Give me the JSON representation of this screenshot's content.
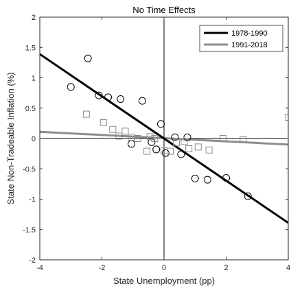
{
  "chart_data": {
    "type": "scatter",
    "title": "No Time Effects",
    "xlabel": "State Unemployment (pp)",
    "ylabel": "State Non-Tradeable Inflation (%)",
    "xlim": [
      -4,
      4
    ],
    "ylim": [
      -2,
      2
    ],
    "xticks": [
      "-4",
      "-2",
      "0",
      "2",
      "4"
    ],
    "yticks": [
      "2",
      "1.5",
      "1",
      "0.5",
      "0",
      "-0.5",
      "-1",
      "-1.5",
      "-2"
    ],
    "grid": false,
    "reference_lines": {
      "x0": true,
      "y0": true
    },
    "legend_position": "top-right",
    "series": [
      {
        "name": "1978-1990",
        "marker": "circle",
        "line_color": "#000000",
        "marker_color": "#000000",
        "fit_line": {
          "x": [
            -4,
            4
          ],
          "y": [
            1.39,
            -1.39
          ]
        },
        "points": [
          [
            -3.0,
            0.85
          ],
          [
            -2.45,
            1.32
          ],
          [
            -2.1,
            0.71
          ],
          [
            -1.8,
            0.68
          ],
          [
            -1.4,
            0.65
          ],
          [
            -0.7,
            0.62
          ],
          [
            -1.05,
            -0.09
          ],
          [
            -0.4,
            -0.06
          ],
          [
            -0.25,
            -0.18
          ],
          [
            -0.1,
            0.24
          ],
          [
            0.05,
            -0.24
          ],
          [
            0.35,
            0.02
          ],
          [
            0.55,
            -0.26
          ],
          [
            0.75,
            0.02
          ],
          [
            1.0,
            -0.66
          ],
          [
            1.4,
            -0.68
          ],
          [
            2.0,
            -0.65
          ],
          [
            2.7,
            -0.95
          ]
        ]
      },
      {
        "name": "1991-2018",
        "marker": "square",
        "line_color": "#8c8c8c",
        "marker_color": "#8c8c8c",
        "fit_line": {
          "x": [
            -4,
            4
          ],
          "y": [
            0.11,
            -0.1
          ]
        },
        "points": [
          [
            -2.5,
            0.4
          ],
          [
            -1.95,
            0.26
          ],
          [
            -1.65,
            0.15
          ],
          [
            -1.45,
            0.04
          ],
          [
            -1.25,
            0.12
          ],
          [
            -1.05,
            0.02
          ],
          [
            -0.85,
            0.0
          ],
          [
            -0.55,
            -0.21
          ],
          [
            -0.45,
            0.03
          ],
          [
            -0.3,
            0.0
          ],
          [
            0.0,
            -0.2
          ],
          [
            0.2,
            -0.21
          ],
          [
            0.4,
            -0.07
          ],
          [
            0.65,
            -0.05
          ],
          [
            0.8,
            -0.17
          ],
          [
            1.1,
            -0.14
          ],
          [
            1.45,
            -0.19
          ],
          [
            1.9,
            0.0
          ],
          [
            2.55,
            -0.02
          ],
          [
            4.0,
            0.35
          ]
        ]
      }
    ]
  }
}
